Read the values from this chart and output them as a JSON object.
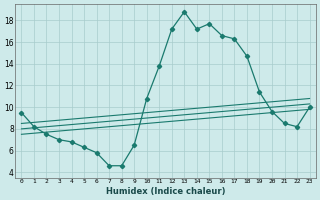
{
  "xlabel": "Humidex (Indice chaleur)",
  "background_color": "#ceeaea",
  "grid_color": "#a8cccc",
  "line_color": "#1a7a6e",
  "xlim": [
    0,
    23
  ],
  "ylim": [
    3.5,
    19.5
  ],
  "xtick_labels": [
    "0",
    "1",
    "2",
    "3",
    "4",
    "5",
    "6",
    "7",
    "8",
    "9",
    "10",
    "11",
    "12",
    "13",
    "14",
    "15",
    "16",
    "17",
    "18",
    "19",
    "20",
    "21",
    "22",
    "23"
  ],
  "ytick_values": [
    4,
    6,
    8,
    10,
    12,
    14,
    16,
    18
  ],
  "main_series": {
    "x": [
      0,
      1,
      2,
      3,
      4,
      5,
      6,
      7,
      8,
      9,
      10,
      11,
      12,
      13,
      14,
      15,
      16,
      17,
      18,
      19,
      20,
      21,
      22,
      23
    ],
    "y": [
      9.5,
      8.2,
      7.5,
      7.0,
      6.8,
      6.3,
      5.8,
      4.6,
      4.6,
      6.5,
      10.8,
      13.8,
      17.2,
      18.8,
      17.2,
      17.7,
      16.6,
      16.3,
      14.7,
      11.4,
      9.6,
      8.5,
      8.2,
      10.0
    ]
  },
  "extra_lines": [
    {
      "x": [
        0,
        23
      ],
      "y": [
        8.5,
        10.8
      ]
    },
    {
      "x": [
        0,
        23
      ],
      "y": [
        8.0,
        10.3
      ]
    },
    {
      "x": [
        0,
        23
      ],
      "y": [
        7.5,
        9.8
      ]
    }
  ]
}
